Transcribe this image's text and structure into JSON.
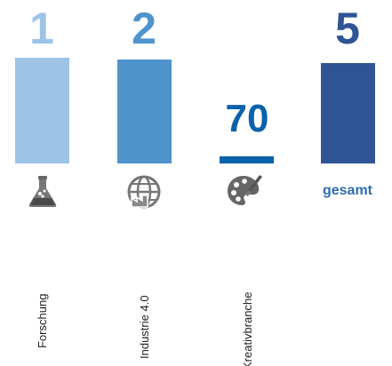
{
  "chart_data": {
    "type": "bar",
    "categories": [
      "Forschung",
      "Industrie 4.0",
      "Kreativbranche",
      "gesamt"
    ],
    "values": [
      1,
      2,
      70,
      5
    ],
    "value_labels": [
      "1",
      "2",
      "70",
      "5"
    ],
    "colors": [
      "#9dc3e6",
      "#4f94cd",
      "#0a62ab",
      "#2f5496"
    ],
    "icons": [
      "flask-icon",
      "globe-factory-icon",
      "palette-brush-icon",
      ""
    ],
    "gesamt_label": "gesamt",
    "gesamt_color": "#2f6cb3"
  }
}
